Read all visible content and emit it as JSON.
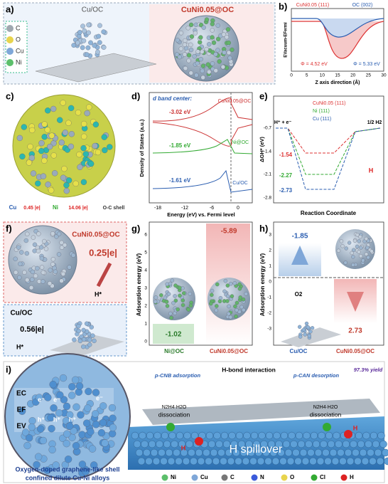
{
  "panels": {
    "a": {
      "label": "a)",
      "left": "Cu/OC",
      "right": "CuNi0.05@OC",
      "legend": [
        "C",
        "O",
        "Cu",
        "Ni"
      ]
    },
    "b": {
      "label": "b)",
      "legend": [
        "CuNi0.05 (111)",
        "OC (002)"
      ],
      "ylabel": "EVacuum-EFermi",
      "phi": [
        "Φ = 4.52 eV",
        "Φ = 5.33 eV"
      ],
      "xticks": [
        "0",
        "5",
        "10",
        "15",
        "20",
        "25",
        "30"
      ],
      "xlabel": "Z axis direction (Å)"
    },
    "c": {
      "label": "c)",
      "legend": [
        "Cu",
        "0.45 |e|",
        "Ni",
        "14.06 |e|",
        "O-C shell"
      ]
    },
    "d": {
      "label": "d)",
      "note": "d band center:",
      "centers": [
        "-3.02 eV",
        "-1.85 eV",
        "-1.61 eV"
      ],
      "names": [
        "CuNi0.05@OC",
        "Ni@OC",
        "Cu/OC"
      ],
      "ylabel": "Density of States (a.u.)",
      "xticks": [
        "-18",
        "-12",
        "-6",
        "0"
      ],
      "xlabel": "Energy (eV) vs. Fermi level"
    },
    "e": {
      "label": "e)",
      "legend": [
        "CuNi0.05 (111)",
        "Ni (111)",
        "Cu (111)"
      ],
      "start": "H⁺ + e⁻",
      "end": "1/2 H2",
      "values": [
        "-1.54",
        "-2.27",
        "-2.73"
      ],
      "ylabel": "ΔGH* (eV)",
      "yticks": [
        "-0.7",
        "-1.4",
        "-2.1",
        "-2.8"
      ],
      "xlabel": "Reaction Coordinate",
      "atom": "H"
    },
    "f": {
      "label": "f)",
      "top": "CuNi0.05@OC",
      "top_charge": "0.25|e|",
      "top_h": "H*",
      "bottom": "Cu/OC",
      "bottom_charge": "0.56|e|",
      "bottom_h": "H*"
    },
    "g": {
      "label": "g)",
      "values": [
        "-5.89",
        "-1.02"
      ],
      "ylabel": "Adsorption energy (eV)",
      "yticks": [
        "6",
        "5",
        "4",
        "3",
        "2",
        "1",
        "0"
      ],
      "xlabels": [
        "Ni@OC",
        "CuNi0.05@OC"
      ]
    },
    "h": {
      "label": "h)",
      "values": [
        "-1.85",
        "2.73"
      ],
      "ylabel": "Adsorption energy (eV)",
      "yticks": [
        "3",
        "2",
        "1",
        "0",
        "-1",
        "-2",
        "-3"
      ],
      "xlabels": [
        "Cu/OC",
        "CuNi0.05@OC"
      ],
      "molecule": "O2"
    },
    "i": {
      "label": "i)",
      "bands": [
        "EC",
        "EF",
        "EV"
      ],
      "electron": "e⁻",
      "hole": "h⁺",
      "adsorption": "p-CNB adsorption",
      "interaction": "H-bond interaction",
      "desorption": "p-CAN desorption",
      "yield": "97.3% yield",
      "reagent": "N2H4·H2O",
      "dissociation": "dissociation",
      "spillover": "H spillover",
      "atom": "H",
      "caption": [
        "Oxygen-doped graphene-like shell",
        "confined dilute Cu-Ni alloys"
      ],
      "legend": [
        "Ni",
        "Cu",
        "C",
        "N",
        "O",
        "Cl",
        "H"
      ]
    }
  }
}
